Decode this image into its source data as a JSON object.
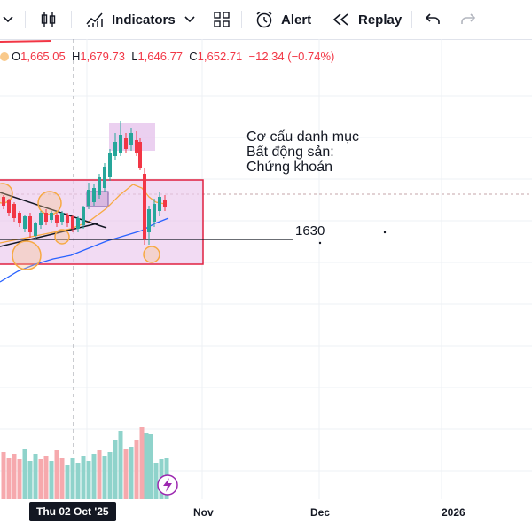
{
  "toolbar": {
    "indicators_label": "Indicators",
    "alert_label": "Alert",
    "replay_label": "Replay"
  },
  "legend": {
    "open_key": "O",
    "open": "1,665.05",
    "high_key": "H",
    "high": "1,679.73",
    "low_key": "L",
    "low": "1,646.77",
    "close_key": "C",
    "close": "1,652.71",
    "change": "−12.34 (−0.74%)"
  },
  "annotations": {
    "note_line1": "Cơ cấu danh mục",
    "note_line2": "Bất động sản:",
    "note_line3": "Chứng khoán",
    "level_label": "1630"
  },
  "x_axis": {
    "crosshair_date": "Thu 02 Oct '25",
    "nov": "Nov",
    "dec": "Dec",
    "year": "2026"
  },
  "colors": {
    "up": "#26a69a",
    "down": "#f23645",
    "zone_fill": "#ebc8ec",
    "zone_border": "#e02040",
    "ma_fast": "#f7a942",
    "ma_slow": "#2962ff",
    "circle": "#f7a942"
  },
  "icons": [
    "candles-icon",
    "indicators-icon",
    "chevron-down-icon",
    "layouts-icon",
    "alert-icon",
    "replay-icon",
    "undo-icon",
    "redo-icon",
    "lightning-icon"
  ]
}
